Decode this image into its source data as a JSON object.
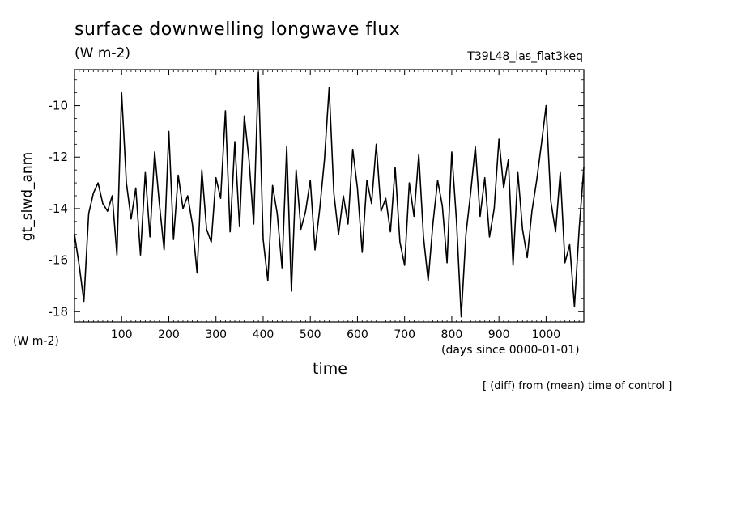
{
  "chart_data": {
    "type": "line",
    "title": "surface downwelling longwave flux",
    "units": "(W m-2)",
    "experiment": "T39L48_ias_flat3keq",
    "ylabel": "gt_slwd_anm",
    "y_units_label": "(W m-2)",
    "xlabel": "time",
    "x_units_label": "(days since 0000-01-01)",
    "note": "[ (diff) from (mean) time of control ]",
    "xlim": [
      0,
      1080
    ],
    "ylim": [
      -18.4,
      -8.6
    ],
    "xticks": [
      100,
      200,
      300,
      400,
      500,
      600,
      700,
      800,
      900,
      1000
    ],
    "yticks": [
      -10,
      -12,
      -14,
      -16,
      -18
    ],
    "grid": false,
    "series": [
      {
        "x": [
          0,
          10,
          20,
          30,
          40,
          50,
          60,
          70,
          80,
          90,
          100,
          110,
          120,
          130,
          140,
          150,
          160,
          170,
          180,
          190,
          200,
          210,
          220,
          230,
          240,
          250,
          260,
          270,
          280,
          290,
          300,
          310,
          320,
          330,
          340,
          350,
          360,
          370,
          380,
          390,
          400,
          410,
          420,
          430,
          440,
          450,
          460,
          470,
          480,
          490,
          500,
          510,
          520,
          530,
          540,
          550,
          560,
          570,
          580,
          590,
          600,
          610,
          620,
          630,
          640,
          650,
          660,
          670,
          680,
          690,
          700,
          710,
          720,
          730,
          740,
          750,
          760,
          770,
          780,
          790,
          800,
          810,
          820,
          830,
          840,
          850,
          860,
          870,
          880,
          890,
          900,
          910,
          920,
          930,
          940,
          950,
          960,
          970,
          980,
          990,
          1000,
          1010,
          1020,
          1030,
          1040,
          1050,
          1060,
          1070,
          1080
        ],
        "values": [
          -15.0,
          -16.2,
          -17.6,
          -14.2,
          -13.4,
          -13.0,
          -13.8,
          -14.1,
          -13.5,
          -15.8,
          -9.5,
          -13.0,
          -14.4,
          -13.2,
          -15.8,
          -12.6,
          -15.1,
          -11.8,
          -13.8,
          -15.6,
          -11.0,
          -15.2,
          -12.7,
          -14.0,
          -13.5,
          -14.6,
          -16.5,
          -12.5,
          -14.8,
          -15.3,
          -12.8,
          -13.6,
          -10.2,
          -14.9,
          -11.4,
          -14.7,
          -10.4,
          -12.1,
          -14.6,
          -8.7,
          -15.2,
          -16.8,
          -13.1,
          -14.2,
          -16.3,
          -11.6,
          -17.2,
          -12.5,
          -14.8,
          -14.1,
          -12.9,
          -15.6,
          -14.0,
          -12.1,
          -9.3,
          -13.4,
          -15.0,
          -13.5,
          -14.6,
          -11.7,
          -13.2,
          -15.7,
          -12.9,
          -13.8,
          -11.5,
          -14.1,
          -13.6,
          -14.9,
          -12.4,
          -15.3,
          -16.2,
          -13.0,
          -14.3,
          -11.9,
          -15.1,
          -16.8,
          -14.6,
          -12.9,
          -13.9,
          -16.1,
          -11.8,
          -14.5,
          -18.2,
          -15.0,
          -13.4,
          -11.6,
          -14.3,
          -12.8,
          -15.1,
          -14.0,
          -11.3,
          -13.2,
          -12.1,
          -16.2,
          -12.6,
          -14.8,
          -15.9,
          -14.1,
          -12.9,
          -11.5,
          -10.0,
          -13.7,
          -14.9,
          -12.6,
          -16.1,
          -15.4,
          -17.8,
          -14.8,
          -12.4
        ]
      }
    ]
  }
}
